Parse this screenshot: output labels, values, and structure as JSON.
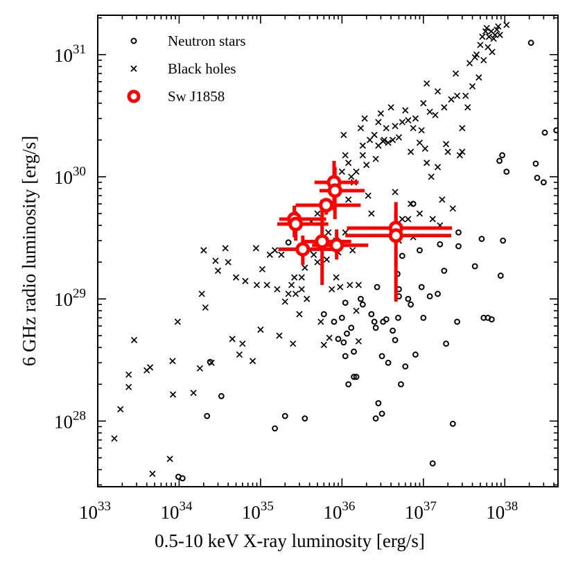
{
  "chart_data": {
    "type": "scatter",
    "xlabel": "0.5-10 keV X-ray luminosity [erg/s]",
    "ylabel": "6 GHz radio luminosity [erg/s]",
    "xscale": "log",
    "yscale": "log",
    "xlim": [
      1e+33,
      4.5e+38
    ],
    "ylim": [
      2.9e+27,
      2.1e+31
    ],
    "x_ticks": [
      {
        "base": "10",
        "exp": "33"
      },
      {
        "base": "10",
        "exp": "34"
      },
      {
        "base": "10",
        "exp": "35"
      },
      {
        "base": "10",
        "exp": "36"
      },
      {
        "base": "10",
        "exp": "37"
      },
      {
        "base": "10",
        "exp": "38"
      }
    ],
    "y_ticks": [
      {
        "base": "10",
        "exp": "28"
      },
      {
        "base": "10",
        "exp": "29"
      },
      {
        "base": "10",
        "exp": "30"
      },
      {
        "base": "10",
        "exp": "31"
      }
    ],
    "legend_position": "top-left",
    "grid": false,
    "series": [
      {
        "name": "Neutron stars",
        "marker": "open-circle",
        "color": "#000000",
        "points": [
          [
            9.8e+33,
            3.5e+27
          ],
          [
            1.1e+34,
            3.4e+27
          ],
          [
            2.2e+34,
            1.1e+28
          ],
          [
            2.4e+34,
            3.05e+28
          ],
          [
            3.3e+34,
            1.6e+28
          ],
          [
            1.5e+35,
            8.7e+27
          ],
          [
            2e+35,
            1.1e+28
          ],
          [
            2.2e+35,
            2.9e+29
          ],
          [
            3.5e+35,
            1.05e+28
          ],
          [
            5e+35,
            2.8e+29
          ],
          [
            6e+35,
            7.5e+28
          ],
          [
            8e+35,
            6.5e+28
          ],
          [
            9e+35,
            4.7e+28
          ],
          [
            1e+36,
            7e+28
          ],
          [
            1.05e+36,
            4.4e+28
          ],
          [
            1.1e+36,
            3.4e+28
          ],
          [
            1.1e+36,
            9.3e+28
          ],
          [
            1.15e+36,
            5.2e+28
          ],
          [
            1.2e+36,
            2e+28
          ],
          [
            1.3e+36,
            5.8e+28
          ],
          [
            1.4e+36,
            2.3e+28
          ],
          [
            1.5e+36,
            2.3e+28
          ],
          [
            1.4e+36,
            3.7e+28
          ],
          [
            1.7e+36,
            1e+29
          ],
          [
            1.8e+36,
            9e+28
          ],
          [
            2.3e+36,
            7.5e+28
          ],
          [
            2.5e+36,
            6.5e+28
          ],
          [
            2.6e+36,
            5.8e+28
          ],
          [
            2.7e+36,
            1.25e+29
          ],
          [
            2.8e+36,
            1.4e+28
          ],
          [
            2.6e+36,
            1.05e+28
          ],
          [
            3.1e+36,
            1.15e+28
          ],
          [
            3.1e+36,
            3.4e+28
          ],
          [
            3.2e+36,
            6.5e+28
          ],
          [
            3.5e+36,
            6.8e+28
          ],
          [
            3.7e+36,
            3e+28
          ],
          [
            4.2e+36,
            5.5e+28
          ],
          [
            4.5e+36,
            4.6e+28
          ],
          [
            4.8e+36,
            1.6e+29
          ],
          [
            4.9e+36,
            7e+28
          ],
          [
            5e+36,
            1.05e+29
          ],
          [
            5e+36,
            1.2e+29
          ],
          [
            5.3e+36,
            2e+28
          ],
          [
            5.5e+36,
            2.25e+29
          ],
          [
            6e+36,
            2.8e+28
          ],
          [
            6.5e+36,
            1e+29
          ],
          [
            7e+36,
            9e+28
          ],
          [
            7.5e+36,
            6e+29
          ],
          [
            8e+36,
            3.5e+28
          ],
          [
            9e+36,
            2.5e+29
          ],
          [
            9.5e+36,
            1.25e+29
          ],
          [
            1e+37,
            7e+28
          ],
          [
            1.2e+37,
            1.05e+29
          ],
          [
            1.3e+37,
            4.5e+27
          ],
          [
            1.5e+37,
            1.1e+29
          ],
          [
            1.6e+37,
            2.8e+29
          ],
          [
            1.8e+37,
            1.7e+29
          ],
          [
            1.9e+37,
            4.3e+28
          ],
          [
            2.3e+37,
            9.5e+27
          ],
          [
            2.6e+37,
            6.5e+28
          ],
          [
            2.7e+37,
            3.5e+29
          ],
          [
            2.7e+37,
            2.7e+29
          ],
          [
            4.3e+37,
            1.85e+29
          ],
          [
            5.2e+37,
            3.1e+29
          ],
          [
            5.5e+37,
            7e+28
          ],
          [
            6.2e+37,
            7e+28
          ],
          [
            6.9e+37,
            6.8e+28
          ],
          [
            8.6e+37,
            1.35e+30
          ],
          [
            8.9e+37,
            1.55e+29
          ],
          [
            9.3e+37,
            1.5e+30
          ],
          [
            9.5e+37,
            3e+29
          ],
          [
            1.05e+38,
            1.1e+30
          ],
          [
            2.1e+38,
            1.25e+31
          ],
          [
            2.4e+38,
            1.28e+30
          ],
          [
            2.5e+38,
            9.8e+29
          ],
          [
            3.1e+38,
            2.3e+30
          ],
          [
            3e+38,
            9e+29
          ],
          [
            4.3e+38,
            2.4e+30
          ]
        ]
      },
      {
        "name": "Black holes",
        "marker": "cross",
        "color": "#000000",
        "points": [
          [
            1.6e+33,
            7.2e+27
          ],
          [
            1.9e+33,
            1.25e+28
          ],
          [
            2.4e+33,
            1.9e+28
          ],
          [
            2.4e+33,
            2.4e+28
          ],
          [
            2.8e+33,
            4.6e+28
          ],
          [
            4e+33,
            2.6e+28
          ],
          [
            4.4e+33,
            2.75e+28
          ],
          [
            4.7e+33,
            3.7e+27
          ],
          [
            7.7e+33,
            4.9e+27
          ],
          [
            8.4e+33,
            1.65e+28
          ],
          [
            8.3e+33,
            3.1e+28
          ],
          [
            9.6e+33,
            6.5e+28
          ],
          [
            1.5e+34,
            1.7e+28
          ],
          [
            1.8e+34,
            2.7e+28
          ],
          [
            1.9e+34,
            1.1e+29
          ],
          [
            2e+34,
            2.5e+29
          ],
          [
            2.1e+34,
            8.5e+28
          ],
          [
            2.5e+34,
            3e+28
          ],
          [
            2.8e+34,
            2.05e+29
          ],
          [
            3e+34,
            1.7e+29
          ],
          [
            4e+34,
            2e+29
          ],
          [
            3.7e+34,
            2.6e+29
          ],
          [
            4.5e+34,
            4.7e+28
          ],
          [
            5e+34,
            1.5e+29
          ],
          [
            5.5e+34,
            3.5e+28
          ],
          [
            6e+34,
            4.3e+28
          ],
          [
            6.5e+34,
            1.4e+29
          ],
          [
            8e+34,
            3.1e+28
          ],
          [
            9e+34,
            1.3e+29
          ],
          [
            8.8e+34,
            2.6e+29
          ],
          [
            1e+35,
            5.6e+28
          ],
          [
            1.05e+35,
            1.75e+29
          ],
          [
            1.2e+35,
            1.3e+29
          ],
          [
            1.3e+35,
            2.3e+29
          ],
          [
            1.5e+35,
            2.5e+29
          ],
          [
            1.6e+35,
            1.2e+29
          ],
          [
            1.7e+35,
            5e+28
          ],
          [
            1.8e+35,
            2.3e+29
          ],
          [
            2e+35,
            9.5e+28
          ],
          [
            2.2e+35,
            1.1e+29
          ],
          [
            2.4e+35,
            1.3e+29
          ],
          [
            2.5e+35,
            4.3e+28
          ],
          [
            2.6e+35,
            1.5e+29
          ],
          [
            2.7e+35,
            1.1e+29
          ],
          [
            3e+35,
            7.5e+28
          ],
          [
            3.2e+35,
            1.5e+29
          ],
          [
            3.2e+35,
            1.2e+29
          ],
          [
            3.5e+35,
            1.8e+29
          ],
          [
            3.7e+35,
            1e+29
          ],
          [
            4e+35,
            2.5e+29
          ],
          [
            4.2e+35,
            4.3e+29
          ],
          [
            4.5e+35,
            2.3e+29
          ],
          [
            5e+35,
            2e+29
          ],
          [
            5e+35,
            5e+29
          ],
          [
            5.5e+35,
            3e+29
          ],
          [
            5.5e+35,
            6.5e+28
          ],
          [
            6e+35,
            4.2e+28
          ],
          [
            6.5e+35,
            2.1e+29
          ],
          [
            6.8e+35,
            3.5e+29
          ],
          [
            7e+35,
            4.8e+28
          ],
          [
            7.5e+35,
            1.2e+29
          ],
          [
            8e+35,
            8e+29
          ],
          [
            8.5e+35,
            3e+29
          ],
          [
            8.5e+35,
            1.5e+29
          ],
          [
            9e+35,
            2.4e+29
          ],
          [
            9.5e+35,
            1.25e+29
          ],
          [
            1e+36,
            1.1e+30
          ],
          [
            1.05e+36,
            2.2e+30
          ],
          [
            1.1e+36,
            3.5e+29
          ],
          [
            1.1e+36,
            1.5e+30
          ],
          [
            1.2e+36,
            1.3e+30
          ],
          [
            1.2e+36,
            6.5e+29
          ],
          [
            1.25e+36,
            1.3e+29
          ],
          [
            1.3e+36,
            1e+30
          ],
          [
            1.35e+36,
            2.5e+29
          ],
          [
            1.4e+36,
            9e+29
          ],
          [
            1.5e+36,
            1.1e+30
          ],
          [
            1.5e+36,
            8e+28
          ],
          [
            1.6e+36,
            4.5e+28
          ],
          [
            1.6e+36,
            1.3e+29
          ],
          [
            1.7e+36,
            2.5e+30
          ],
          [
            1.8e+36,
            1.5e+30
          ],
          [
            1.8e+36,
            1.8e+30
          ],
          [
            1.9e+36,
            3e+30
          ],
          [
            2e+36,
            1.25e+30
          ],
          [
            2.1e+36,
            7e+29
          ],
          [
            2.2e+36,
            2e+30
          ],
          [
            2.3e+36,
            5e+29
          ],
          [
            2.5e+36,
            2.2e+30
          ],
          [
            2.6e+36,
            1.4e+30
          ],
          [
            2.8e+36,
            2.8e+30
          ],
          [
            2.8e+36,
            1.8e+30
          ],
          [
            3e+36,
            3.3e+30
          ],
          [
            3.2e+36,
            1.95e+30
          ],
          [
            3.3e+36,
            2e+30
          ],
          [
            3.5e+36,
            2.5e+30
          ],
          [
            3.7e+36,
            1.9e+30
          ],
          [
            4e+36,
            3.7e+30
          ],
          [
            4.2e+36,
            2e+30
          ],
          [
            4.5e+36,
            7.5e+29
          ],
          [
            4.5e+36,
            2.6e+30
          ],
          [
            5e+36,
            2.1e+30
          ],
          [
            5e+36,
            3e+29
          ],
          [
            5.5e+36,
            2.8e+30
          ],
          [
            5.5e+36,
            4.5e+29
          ],
          [
            6e+36,
            3.5e+30
          ],
          [
            6.5e+36,
            2.9e+30
          ],
          [
            6.5e+36,
            4.5e+29
          ],
          [
            7e+36,
            1.6e+30
          ],
          [
            7e+36,
            6e+29
          ],
          [
            7.5e+36,
            3.2e+29
          ],
          [
            7.5e+36,
            2.5e+30
          ],
          [
            8e+36,
            3e+30
          ],
          [
            9e+36,
            1.9e+30
          ],
          [
            9e+36,
            5e+29
          ],
          [
            9.5e+36,
            2.4e+30
          ],
          [
            1e+37,
            4e+30
          ],
          [
            1.05e+37,
            1.7e+30
          ],
          [
            1.1e+37,
            1.3e+30
          ],
          [
            1.1e+37,
            5.8e+30
          ],
          [
            1.2e+37,
            3.4e+30
          ],
          [
            1.25e+37,
            1e+30
          ],
          [
            1.3e+37,
            4.5e+29
          ],
          [
            1.4e+37,
            3.2e+30
          ],
          [
            1.5e+37,
            5e+30
          ],
          [
            1.5e+37,
            1.2e+30
          ],
          [
            1.6e+37,
            4e+29
          ],
          [
            1.7e+37,
            6.5e+29
          ],
          [
            1.8e+37,
            3.7e+30
          ],
          [
            1.9e+37,
            1.85e+30
          ],
          [
            2e+37,
            1.6e+30
          ],
          [
            2.2e+37,
            4.3e+30
          ],
          [
            2.3e+37,
            5.5e+29
          ],
          [
            2.5e+37,
            7e+30
          ],
          [
            2.6e+37,
            4.6e+30
          ],
          [
            2.8e+37,
            1.5e+30
          ],
          [
            3e+37,
            2.5e+30
          ],
          [
            3e+37,
            1.6e+30
          ],
          [
            3.3e+37,
            4.6e+30
          ],
          [
            3.5e+37,
            3.7e+30
          ],
          [
            3.7e+37,
            8.5e+30
          ],
          [
            4e+37,
            5.5e+30
          ],
          [
            4.3e+37,
            9.5e+30
          ],
          [
            4.5e+37,
            1e+31
          ],
          [
            4.8e+37,
            6.5e+30
          ],
          [
            5e+37,
            1.2e+31
          ],
          [
            5.3e+37,
            1.4e+31
          ],
          [
            5.5e+37,
            9e+30
          ],
          [
            5.8e+37,
            1.55e+31
          ],
          [
            6e+37,
            1.65e+31
          ],
          [
            6.2e+37,
            1.15e+31
          ],
          [
            6.4e+37,
            1.4e+31
          ],
          [
            6.8e+37,
            1.55e+31
          ],
          [
            7e+37,
            1.05e+31
          ],
          [
            7.3e+37,
            1.35e+31
          ],
          [
            7.6e+37,
            1.45e+31
          ],
          [
            8e+37,
            1.6e+31
          ],
          [
            8.3e+37,
            1.7e+31
          ],
          [
            8.7e+37,
            1.45e+31
          ],
          [
            1.05e+38,
            1.75e+31
          ]
        ]
      },
      {
        "name": "Sw J1858",
        "marker": "thick-open-circle",
        "color": "#ff0000",
        "points": [
          {
            "x": 2.6e+35,
            "y": 4.5e+29,
            "xerr": [
              1.7e+35,
              6.4e+35
            ],
            "yerr": [
              3.2e+29,
              5.8e+29
            ]
          },
          {
            "x": 2.7e+35,
            "y": 4.1e+29,
            "xerr": [
              1.6e+35,
              6.8e+35
            ],
            "yerr": [
              3e+29,
              5.2e+29
            ]
          },
          {
            "x": 3.3e+35,
            "y": 2.55e+29,
            "xerr": [
              1.65e+35,
              7.8e+35
            ],
            "yerr": [
              1.9e+29,
              3.3e+29
            ]
          },
          {
            "x": 5.7e+35,
            "y": 2.95e+29,
            "xerr": [
              3.4e+35,
              1.3e+36
            ],
            "yerr": [
              1.3e+29,
              6.5e+29
            ]
          },
          {
            "x": 6.4e+35,
            "y": 5.85e+29,
            "xerr": [
              2.7e+35,
              1.7e+36
            ],
            "yerr": [
              4.9e+29,
              6.7e+29
            ]
          },
          {
            "x": 8e+35,
            "y": 9e+29,
            "xerr": [
              4.6e+35,
              1.6e+36
            ],
            "yerr": [
              5.3e+29,
              1.35e+30
            ]
          },
          {
            "x": 8.2e+35,
            "y": 7.7e+29,
            "xerr": [
              5.3e+35,
              1.9e+36
            ],
            "yerr": [
              4.5e+29,
              1.2e+30
            ]
          },
          {
            "x": 8.6e+35,
            "y": 2.75e+29,
            "xerr": [
              4.3e+35,
              2.1e+36
            ],
            "yerr": [
              2.1e+29,
              3.7e+29
            ]
          },
          {
            "x": 4.6e+36,
            "y": 3.8e+29,
            "xerr": [
              1.15e+36,
              2.25e+37
            ],
            "yerr": [
              2.8e+29,
              5.1e+29
            ]
          },
          {
            "x": 4.6e+36,
            "y": 3.3e+29,
            "xerr": [
              1.1e+36,
              2.2e+37
            ],
            "yerr": [
              9.5e+28,
              6.2e+29
            ]
          }
        ]
      }
    ]
  }
}
